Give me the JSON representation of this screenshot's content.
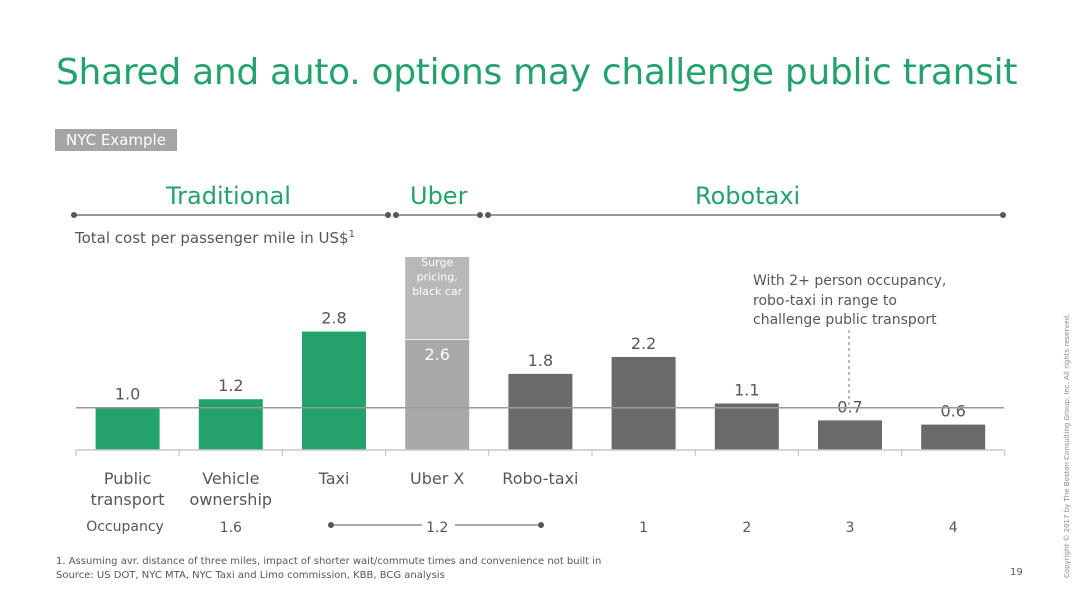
{
  "title": "Shared and auto. options may challenge public transit",
  "tag": "NYC Example",
  "groups": [
    "Traditional",
    "Uber",
    "Robotaxi"
  ],
  "subtitle": "Total cost per passenger mile in US$",
  "subtitle_footnote_marker": "1",
  "callout": [
    "With 2+ person occupancy,",
    "robo-taxi in range to",
    "challenge public transport"
  ],
  "occupancy_label": "Occupancy",
  "footnotes": {
    "note1": "1. Assuming avr. distance of three miles, impact of shorter wait/commute times and convenience not built in",
    "source": "Source: US DOT, NYC MTA, NYC Taxi and Limo commission, KBB, BCG analysis"
  },
  "page_number": "19",
  "copyright": "Copyright © 2017 by The Boston Consulting Group, Inc. All rights reserved.",
  "colors": {
    "green": "#23a36b",
    "light_gray": "#a9a9a9",
    "dark_gray": "#6a6a6c",
    "text": "#575757"
  },
  "chart_data": {
    "type": "bar",
    "categories": [
      "Public transport",
      "Vehicle ownership",
      "Taxi",
      "Uber X",
      "Robo-taxi",
      "",
      "",
      "",
      ""
    ],
    "values": [
      1.0,
      1.2,
      2.8,
      2.6,
      1.8,
      2.2,
      1.1,
      0.7,
      0.6
    ],
    "value_labels": [
      "1.0",
      "1.2",
      "2.8",
      "2.6",
      "1.8",
      "2.2",
      "1.1",
      "0.7",
      "0.6"
    ],
    "bar_groups": [
      "Traditional",
      "Traditional",
      "Traditional",
      "Uber",
      "Robotaxi",
      "Robotaxi",
      "Robotaxi",
      "Robotaxi",
      "Robotaxi"
    ],
    "occupancy": [
      "",
      "1.6",
      "",
      "1.2",
      "",
      "1",
      "2",
      "3",
      "4"
    ],
    "stacked_top": {
      "bar_index": 3,
      "label": "Surge pricing, black car"
    },
    "reference_line": 1.0,
    "ylim": [
      0,
      3.0
    ],
    "xlabel": "",
    "ylabel": "Total cost per passenger mile in US$"
  }
}
